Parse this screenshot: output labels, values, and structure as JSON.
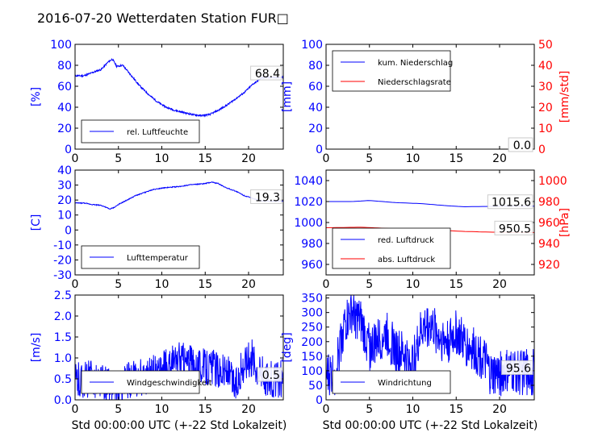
{
  "title": "2016-07-20 Wetterdaten Station FUR□",
  "x_common": {
    "xlim": [
      0,
      24
    ],
    "ticks": [
      0,
      5,
      10,
      15,
      20
    ],
    "xlabel": "Std 00:00:00 UTC (+-22 Std Lokalzeit)"
  },
  "colors": {
    "primary": "#0000ff",
    "secondary": "#ff0000"
  },
  "chart_data": [
    {
      "id": "humidity",
      "type": "line",
      "ylabel": "[%]",
      "ylim": [
        0,
        100
      ],
      "yticks": [
        0,
        20,
        40,
        60,
        80,
        100
      ],
      "series": [
        {
          "name": "rel. Luftfeuchte",
          "color": "#0000ff",
          "noise": 0.8,
          "points": [
            [
              0,
              70
            ],
            [
              1,
              70
            ],
            [
              2,
              73
            ],
            [
              3,
              76
            ],
            [
              3.8,
              83
            ],
            [
              4.3,
              86
            ],
            [
              4.8,
              79
            ],
            [
              5.5,
              80
            ],
            [
              6.5,
              70
            ],
            [
              7.5,
              60
            ],
            [
              8.5,
              52
            ],
            [
              9.5,
              45
            ],
            [
              10.5,
              40
            ],
            [
              11.5,
              37
            ],
            [
              12.5,
              35
            ],
            [
              13.5,
              33
            ],
            [
              14.5,
              32
            ],
            [
              15.5,
              33
            ],
            [
              16.5,
              37
            ],
            [
              17.5,
              42
            ],
            [
              18.5,
              48
            ],
            [
              19.5,
              54
            ],
            [
              20.5,
              62
            ],
            [
              21.5,
              68
            ],
            [
              22.5,
              68.4
            ],
            [
              24,
              68.4
            ]
          ]
        }
      ],
      "last_label": "68.4",
      "legend_pos": "lower-left"
    },
    {
      "id": "precip",
      "type": "line",
      "ylabel": "[mm]",
      "ylim": [
        0,
        100
      ],
      "yticks": [
        0,
        20,
        40,
        60,
        80,
        100
      ],
      "ylabel2": "[mm/std]",
      "ylim2": [
        0,
        50
      ],
      "yticks2": [
        0,
        10,
        20,
        30,
        40,
        50
      ],
      "series": [
        {
          "name": "kum. Niederschlag",
          "color": "#0000ff",
          "axis": "left",
          "points": [
            [
              0,
              0
            ],
            [
              24,
              0
            ]
          ]
        },
        {
          "name": "Niederschlagsrate",
          "color": "#ff0000",
          "axis": "right",
          "points": [
            [
              0,
              0
            ],
            [
              24,
              0
            ]
          ]
        }
      ],
      "last_label": "0.0",
      "last_label2": "0.0",
      "legend_pos": "upper-left"
    },
    {
      "id": "temperature",
      "type": "line",
      "ylabel": "[C]",
      "ylim": [
        -30,
        40
      ],
      "yticks": [
        -30,
        -20,
        -10,
        0,
        10,
        20,
        30,
        40
      ],
      "series": [
        {
          "name": "Lufttemperatur",
          "color": "#0000ff",
          "noise": 0.3,
          "points": [
            [
              0,
              18
            ],
            [
              1,
              18
            ],
            [
              2,
              17
            ],
            [
              3,
              16.5
            ],
            [
              4,
              14
            ],
            [
              4.5,
              15
            ],
            [
              5,
              17
            ],
            [
              6,
              20
            ],
            [
              7,
              23
            ],
            [
              8,
              25
            ],
            [
              9,
              27
            ],
            [
              10,
              28
            ],
            [
              11,
              28.5
            ],
            [
              12,
              29
            ],
            [
              13,
              30
            ],
            [
              14,
              30.5
            ],
            [
              15,
              31
            ],
            [
              15.8,
              32
            ],
            [
              16.5,
              31
            ],
            [
              17.5,
              28
            ],
            [
              18.5,
              26
            ],
            [
              19.5,
              23
            ],
            [
              20.5,
              21
            ],
            [
              21.5,
              19.5
            ],
            [
              22.5,
              19.3
            ],
            [
              24,
              19.3
            ]
          ]
        }
      ],
      "last_label": "19.3",
      "legend_pos": "lower-left"
    },
    {
      "id": "pressure",
      "type": "line",
      "ylim": [
        950,
        1050
      ],
      "yticks": [
        960,
        980,
        1000,
        1020,
        1040
      ],
      "ylabel2": "[hPa]",
      "ylim2": [
        910,
        1010
      ],
      "yticks2": [
        920,
        940,
        960,
        980,
        1000
      ],
      "series": [
        {
          "name": "red. Luftdruck",
          "color": "#0000ff",
          "axis": "left",
          "points": [
            [
              0,
              1020
            ],
            [
              3,
              1020
            ],
            [
              5,
              1021
            ],
            [
              8,
              1019
            ],
            [
              11,
              1018
            ],
            [
              14,
              1016
            ],
            [
              16,
              1015
            ],
            [
              18,
              1015.3
            ],
            [
              21,
              1015.6
            ],
            [
              24,
              1015.6
            ]
          ]
        },
        {
          "name": "abs. Luftdruck",
          "color": "#ff0000",
          "axis": "right",
          "points": [
            [
              0,
              955
            ],
            [
              4,
              955.5
            ],
            [
              8,
              954
            ],
            [
              12,
              953
            ],
            [
              16,
              951.5
            ],
            [
              18,
              951
            ],
            [
              21,
              950.5
            ],
            [
              24,
              950.5
            ]
          ]
        }
      ],
      "last_label": "1015.6",
      "last_label2": "950.5",
      "legend_pos": "lower-left"
    },
    {
      "id": "wind-speed",
      "type": "line",
      "ylabel": "[m/s]",
      "ylim": [
        0,
        2.5
      ],
      "yticks": [
        0.0,
        0.5,
        1.0,
        1.5,
        2.0,
        2.5
      ],
      "series": [
        {
          "name": "Windgeschwindigkeit",
          "color": "#0000ff",
          "noise": 0.45,
          "points": [
            [
              0,
              0.45
            ],
            [
              2,
              0.5
            ],
            [
              4,
              0.35
            ],
            [
              5,
              0.2
            ],
            [
              6,
              0.45
            ],
            [
              8,
              0.55
            ],
            [
              10,
              0.7
            ],
            [
              12,
              0.95
            ],
            [
              14,
              0.8
            ],
            [
              16,
              0.75
            ],
            [
              17.5,
              0.65
            ],
            [
              18.5,
              0.3
            ],
            [
              19.5,
              0.9
            ],
            [
              20.5,
              1.0
            ],
            [
              21.5,
              0.6
            ],
            [
              22.5,
              0.5
            ],
            [
              24,
              0.5
            ]
          ]
        }
      ],
      "last_label": "0.5",
      "legend_pos": "lower-left"
    },
    {
      "id": "wind-direction",
      "type": "line",
      "ylabel": "[deg]",
      "ylim": [
        0,
        360
      ],
      "yticks": [
        0,
        50,
        100,
        150,
        200,
        250,
        300,
        350
      ],
      "series": [
        {
          "name": "Windrichtung",
          "color": "#0000ff",
          "noise": 80,
          "points": [
            [
              0,
              80
            ],
            [
              1,
              90
            ],
            [
              2,
              250
            ],
            [
              3,
              300
            ],
            [
              4,
              260
            ],
            [
              5,
              180
            ],
            [
              6,
              200
            ],
            [
              7,
              230
            ],
            [
              8,
              170
            ],
            [
              9,
              150
            ],
            [
              10,
              120
            ],
            [
              11,
              240
            ],
            [
              12,
              260
            ],
            [
              13,
              220
            ],
            [
              14,
              200
            ],
            [
              15,
              230
            ],
            [
              16,
              190
            ],
            [
              17,
              170
            ],
            [
              18,
              150
            ],
            [
              19,
              80
            ],
            [
              20,
              90
            ],
            [
              21,
              95
            ],
            [
              22,
              95
            ],
            [
              24,
              95.6
            ]
          ]
        }
      ],
      "last_label": "95.6",
      "legend_pos": "lower-left"
    }
  ]
}
